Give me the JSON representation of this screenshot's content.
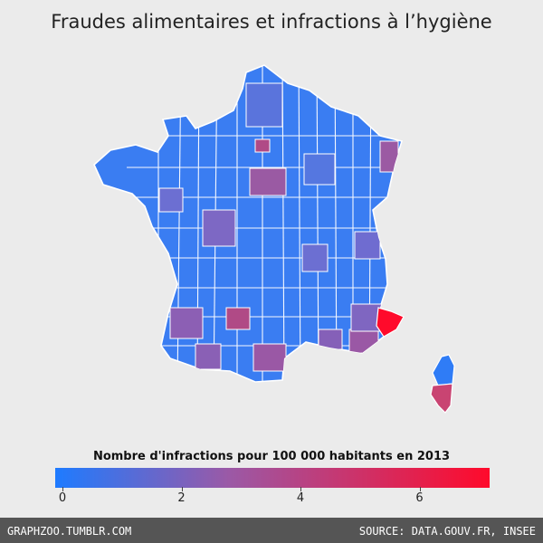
{
  "title": "Fraudes alimentaires et infractions à l’hygiène",
  "legend": {
    "title": "Nombre d'infractions pour 100 000 habitants en 2013",
    "ticks": [
      "0",
      "2",
      "4",
      "6"
    ],
    "tick_values": [
      0,
      2,
      4,
      6
    ],
    "min": 0,
    "max": 7.3,
    "colors": {
      "low": "#1e7bff",
      "mid": "#9b59a6",
      "high": "#ff0a2b"
    }
  },
  "map": {
    "region": "France métropolitaine (départements)",
    "highlighted": [
      {
        "area": "Alpes-Maritimes",
        "level": "highest",
        "color": "#ff0a2b"
      },
      {
        "area": "Corse-du-Sud",
        "level": "high",
        "color": "#c94472"
      },
      {
        "area": "Paris",
        "level": "high",
        "color": "#b04a86"
      },
      {
        "area": "Haut-Rhin",
        "level": "elevated",
        "color": "#9b5aa3"
      },
      {
        "area": "Loiret",
        "level": "elevated",
        "color": "#9a58a5"
      }
    ]
  },
  "footer": {
    "left": "GRAPHZOO.TUMBLR.COM",
    "right": "SOURCE: DATA.GOUV.FR, INSEE"
  }
}
